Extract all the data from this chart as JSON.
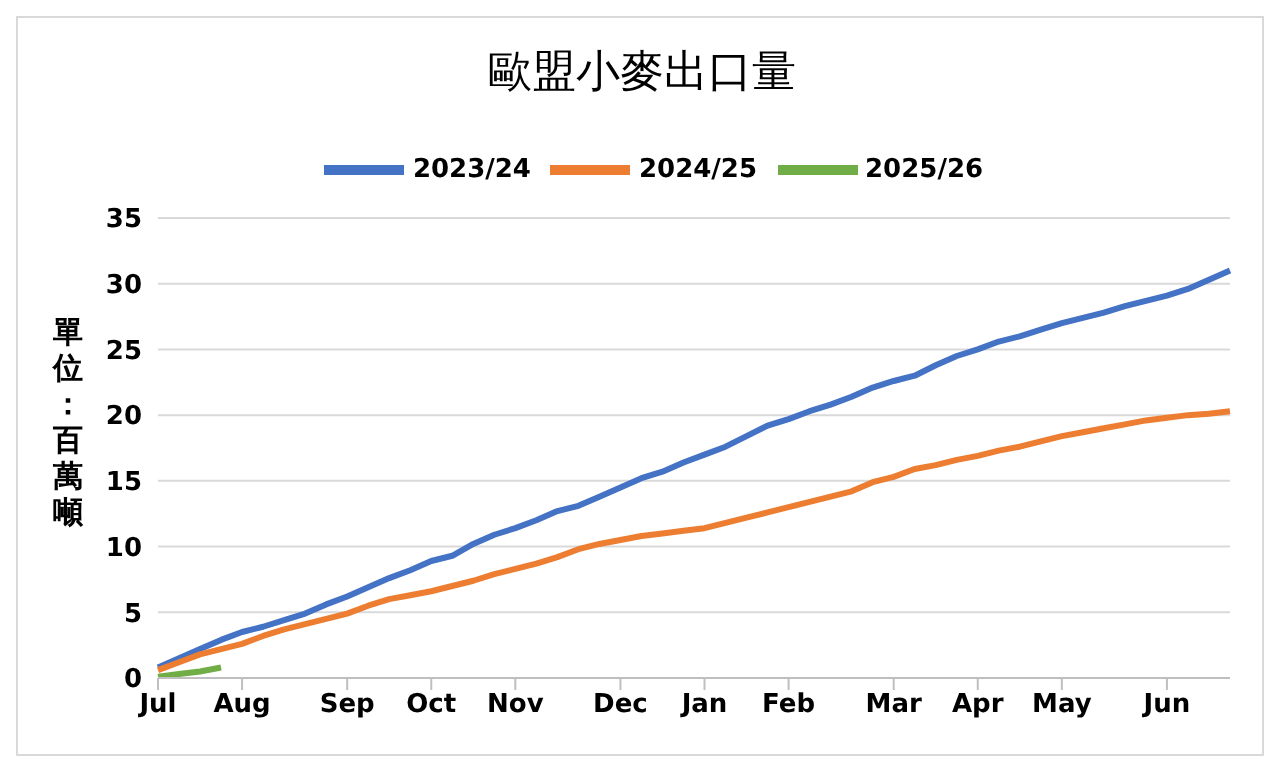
{
  "chart_data": {
    "type": "line",
    "title": "歐盟小麥出口量",
    "ylabel": "單位：百萬噸",
    "categories": [
      "Jul",
      null,
      null,
      null,
      "Aug",
      null,
      null,
      null,
      null,
      "Sep",
      null,
      null,
      null,
      "Oct",
      null,
      null,
      null,
      "Nov",
      null,
      null,
      null,
      null,
      "Dec",
      null,
      null,
      null,
      "Jan",
      null,
      null,
      null,
      "Feb",
      null,
      null,
      null,
      null,
      "Mar",
      null,
      null,
      null,
      "Apr",
      null,
      null,
      null,
      "May",
      null,
      null,
      null,
      null,
      "Jun",
      null,
      null,
      null
    ],
    "series": [
      {
        "name": "2023/24",
        "color": "#4472c4",
        "values": [
          0.8,
          1.5,
          2.2,
          2.9,
          3.5,
          3.9,
          4.4,
          4.9,
          5.6,
          6.2,
          6.9,
          7.6,
          8.2,
          8.9,
          9.3,
          10.2,
          10.9,
          11.4,
          12.0,
          12.7,
          13.1,
          13.8,
          14.5,
          15.2,
          15.7,
          16.4,
          17.0,
          17.6,
          18.4,
          19.2,
          19.7,
          20.3,
          20.8,
          21.4,
          22.1,
          22.6,
          23.0,
          23.8,
          24.5,
          25.0,
          25.6,
          26.0,
          26.5,
          27.0,
          27.4,
          27.8,
          28.3,
          28.7,
          29.1,
          29.6,
          30.3,
          31.0
        ]
      },
      {
        "name": "2024/25",
        "color": "#ed7d31",
        "values": [
          0.6,
          1.2,
          1.8,
          2.2,
          2.6,
          3.2,
          3.7,
          4.1,
          4.5,
          4.9,
          5.5,
          6.0,
          6.3,
          6.6,
          7.0,
          7.4,
          7.9,
          8.3,
          8.7,
          9.2,
          9.8,
          10.2,
          10.5,
          10.8,
          11.0,
          11.2,
          11.4,
          11.8,
          12.2,
          12.6,
          13.0,
          13.4,
          13.8,
          14.2,
          14.9,
          15.3,
          15.9,
          16.2,
          16.6,
          16.9,
          17.3,
          17.6,
          18.0,
          18.4,
          18.7,
          19.0,
          19.3,
          19.6,
          19.8,
          20.0,
          20.1,
          20.3
        ]
      },
      {
        "name": "2025/26",
        "color": "#70ad47",
        "values": [
          0.1,
          0.3,
          0.5,
          0.8,
          null,
          null,
          null,
          null,
          null,
          null,
          null,
          null,
          null,
          null,
          null,
          null,
          null,
          null,
          null,
          null,
          null,
          null,
          null,
          null,
          null,
          null,
          null,
          null,
          null,
          null,
          null,
          null,
          null,
          null,
          null,
          null,
          null,
          null,
          null,
          null,
          null,
          null,
          null,
          null,
          null,
          null,
          null,
          null,
          null,
          null,
          null,
          null
        ]
      }
    ],
    "ylim": [
      0,
      35
    ],
    "yticks": [
      0,
      5,
      10,
      15,
      20,
      25,
      30,
      35
    ],
    "grid": "y",
    "legend": "top",
    "marker": "none",
    "line_style": "solid"
  }
}
